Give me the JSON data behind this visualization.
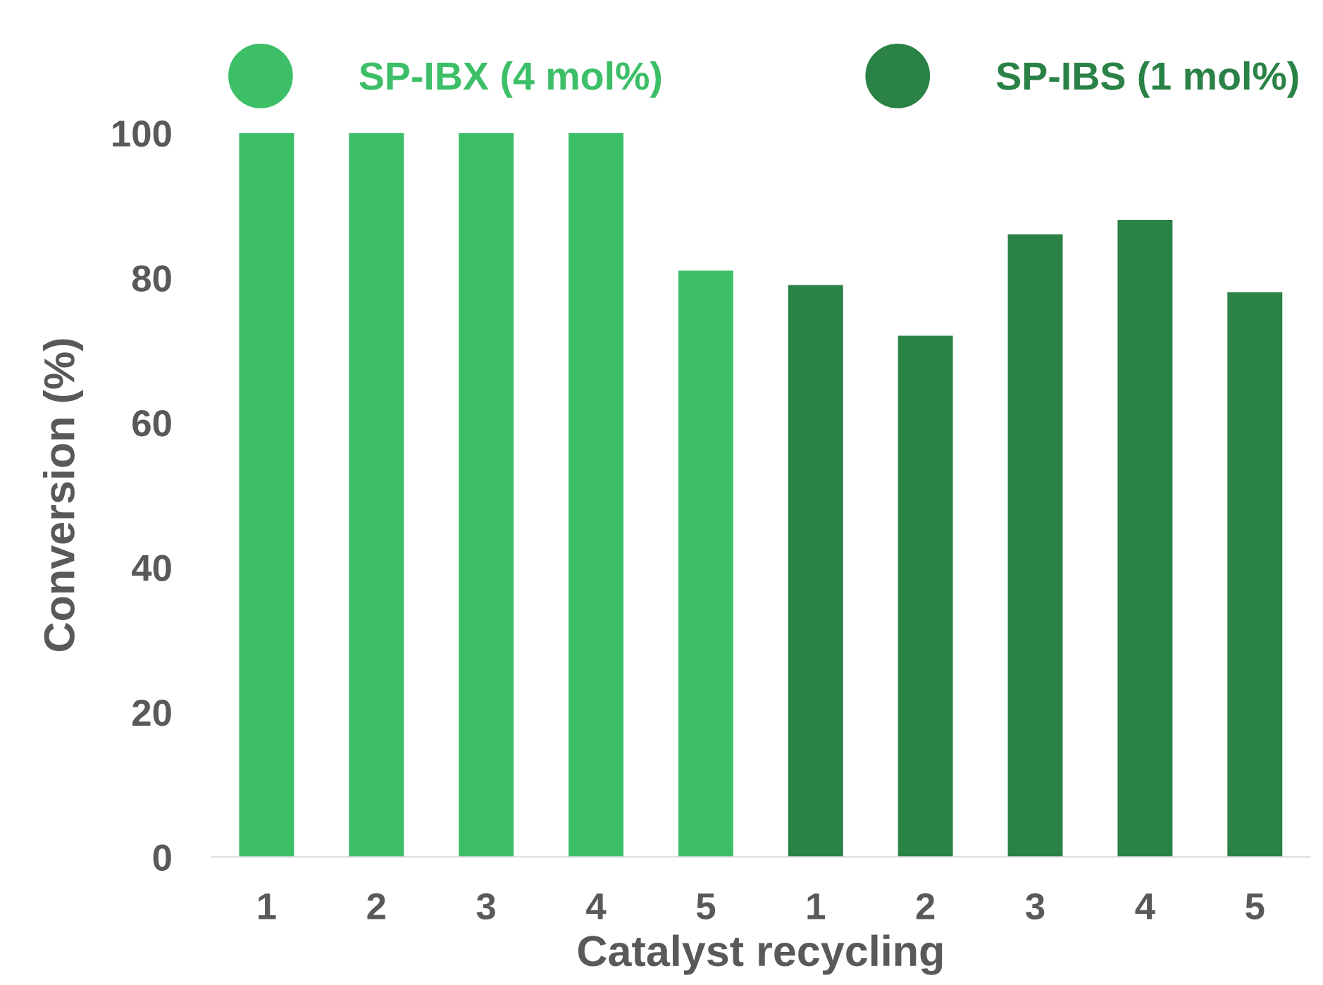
{
  "chart_data": {
    "type": "bar",
    "xlabel": "Catalyst recycling",
    "ylabel": "Conversion (%)",
    "categories": [
      "1",
      "2",
      "3",
      "4",
      "5",
      "1",
      "2",
      "3",
      "4",
      "5"
    ],
    "series": [
      {
        "name": "SP-IBX (4 mol%)",
        "color": "#3dbf68",
        "values": [
          100,
          100,
          100,
          100,
          81,
          null,
          null,
          null,
          null,
          null
        ]
      },
      {
        "name": "SP-IBS (1 mol%)",
        "color": "#2a8246",
        "values": [
          null,
          null,
          null,
          null,
          null,
          79,
          72,
          86,
          88,
          78
        ]
      }
    ],
    "ylim": [
      0,
      100
    ],
    "yticks": [
      0,
      20,
      40,
      60,
      80,
      100
    ],
    "grid": false,
    "legend": "top"
  }
}
